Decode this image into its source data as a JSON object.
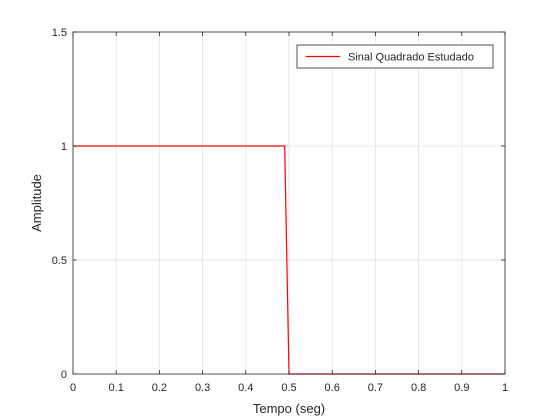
{
  "chart_data": {
    "type": "line",
    "title": "",
    "xlabel": "Tempo (seg)",
    "ylabel": "Amplitude",
    "xlim": [
      0,
      1
    ],
    "ylim": [
      0,
      1.5
    ],
    "xticks": [
      0,
      0.1,
      0.2,
      0.3,
      0.4,
      0.5,
      0.6,
      0.7,
      0.8,
      0.9,
      1
    ],
    "xtick_labels": [
      "0",
      "0.1",
      "0.2",
      "0.3",
      "0.4",
      "0.5",
      "0.6",
      "0.7",
      "0.8",
      "0.9",
      "1"
    ],
    "yticks": [
      0,
      0.5,
      1,
      1.5
    ],
    "ytick_labels": [
      "0",
      "0.5",
      "1",
      "1.5"
    ],
    "grid": true,
    "legend_position": "top-right",
    "series": [
      {
        "name": "Sinal Quadrado Estudado",
        "color": "#ff0000",
        "x": [
          0,
          0.49,
          0.5,
          1
        ],
        "y": [
          1,
          1,
          0,
          0
        ]
      }
    ]
  }
}
